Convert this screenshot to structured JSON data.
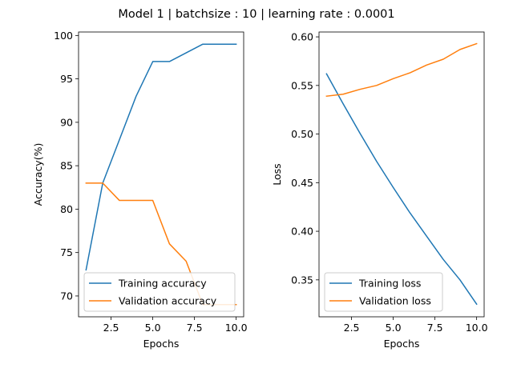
{
  "figure": {
    "suptitle": "Model 1 | batchsize : 10 | learning rate : 0.0001"
  },
  "chart_data": [
    {
      "type": "line",
      "xlabel": "Epochs",
      "ylabel": "Accuracy(%)",
      "xlim": [
        0.55,
        10.45
      ],
      "ylim": [
        67.6,
        100.4
      ],
      "xticks": [
        2.5,
        5.0,
        7.5,
        10.0
      ],
      "xtick_labels": [
        "2.5",
        "5.0",
        "7.5",
        "10.0"
      ],
      "yticks": [
        70,
        75,
        80,
        85,
        90,
        95,
        100
      ],
      "ytick_labels": [
        "70",
        "75",
        "80",
        "85",
        "90",
        "95",
        "100"
      ],
      "grid": false,
      "legend_position": "lower-left",
      "x": [
        1,
        2,
        3,
        4,
        5,
        6,
        7,
        8,
        9,
        10
      ],
      "series": [
        {
          "name": "Training accuracy",
          "color": "#1f77b4",
          "values": [
            73,
            83,
            88,
            93,
            97,
            97,
            98,
            99,
            99,
            99
          ]
        },
        {
          "name": "Validation accuracy",
          "color": "#ff7f0e",
          "values": [
            83,
            83,
            81,
            81,
            81,
            76,
            74,
            69,
            69,
            69
          ]
        }
      ]
    },
    {
      "type": "line",
      "xlabel": "Epochs",
      "ylabel": "Loss",
      "xlim": [
        0.55,
        10.45
      ],
      "ylim": [
        0.312,
        0.605
      ],
      "xticks": [
        2.5,
        5.0,
        7.5,
        10.0
      ],
      "xtick_labels": [
        "2.5",
        "5.0",
        "7.5",
        "10.0"
      ],
      "yticks": [
        0.35,
        0.4,
        0.45,
        0.5,
        0.55,
        0.6
      ],
      "ytick_labels": [
        "0.35",
        "0.40",
        "0.45",
        "0.50",
        "0.55",
        "0.60"
      ],
      "grid": false,
      "legend_position": "lower-left",
      "x": [
        1,
        2,
        3,
        4,
        5,
        6,
        7,
        8,
        9,
        10
      ],
      "series": [
        {
          "name": "Training loss",
          "color": "#1f77b4",
          "values": [
            0.562,
            0.531,
            0.501,
            0.472,
            0.445,
            0.419,
            0.395,
            0.371,
            0.35,
            0.325
          ]
        },
        {
          "name": "Validation loss",
          "color": "#ff7f0e",
          "values": [
            0.539,
            0.541,
            0.546,
            0.55,
            0.557,
            0.563,
            0.571,
            0.577,
            0.587,
            0.593
          ]
        }
      ]
    }
  ]
}
